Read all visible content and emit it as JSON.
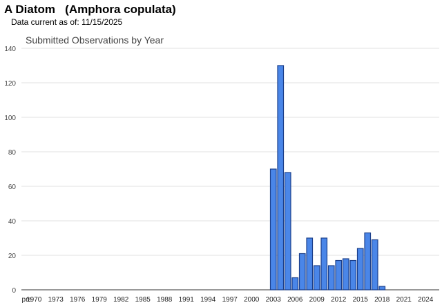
{
  "header": {
    "title": "A Diatom   (Amphora copulata)",
    "data_current": "Data current as of:  11/15/2025"
  },
  "colors": {
    "bar_fill": "#4a86e8",
    "bar_stroke": "#1c3f8a",
    "gridline": "#e0e0e0",
    "axis": "#333333"
  },
  "chart_data": {
    "type": "bar",
    "title": "Submitted Observations by Year",
    "xlabel": "",
    "ylabel": "",
    "ylim": [
      0,
      140
    ],
    "yticks": [
      0,
      20,
      40,
      60,
      80,
      100,
      120,
      140
    ],
    "grid": true,
    "legend": "none",
    "categories": [
      "pre",
      "1970",
      "1971",
      "1972",
      "1973",
      "1974",
      "1975",
      "1976",
      "1977",
      "1978",
      "1979",
      "1980",
      "1981",
      "1982",
      "1983",
      "1984",
      "1985",
      "1986",
      "1987",
      "1988",
      "1989",
      "1990",
      "1991",
      "1992",
      "1993",
      "1994",
      "1995",
      "1996",
      "1997",
      "1998",
      "1999",
      "2000",
      "2001",
      "2002",
      "2003",
      "2004",
      "2005",
      "2006",
      "2007",
      "2008",
      "2009",
      "2010",
      "2011",
      "2012",
      "2013",
      "2014",
      "2015",
      "2016",
      "2017",
      "2018",
      "2019",
      "2020",
      "2021",
      "2022",
      "2023",
      "2024",
      "2025"
    ],
    "xtick_labels": [
      "pre",
      "1970",
      "1973",
      "1976",
      "1979",
      "1982",
      "1985",
      "1988",
      "1991",
      "1994",
      "1997",
      "2000",
      "2003",
      "2006",
      "2009",
      "2012",
      "2015",
      "2018",
      "2021",
      "2024"
    ],
    "values": [
      0,
      0,
      0,
      0,
      0,
      0,
      0,
      0,
      0,
      0,
      0,
      0,
      0,
      0,
      0,
      0,
      0,
      0,
      0,
      0,
      0,
      0,
      0,
      0,
      0,
      0,
      0,
      0,
      0,
      0,
      0,
      0,
      0,
      0,
      70,
      130,
      68,
      7,
      21,
      30,
      14,
      30,
      14,
      17,
      18,
      17,
      24,
      33,
      29,
      2,
      0,
      0,
      0,
      0,
      0,
      0,
      0
    ]
  }
}
